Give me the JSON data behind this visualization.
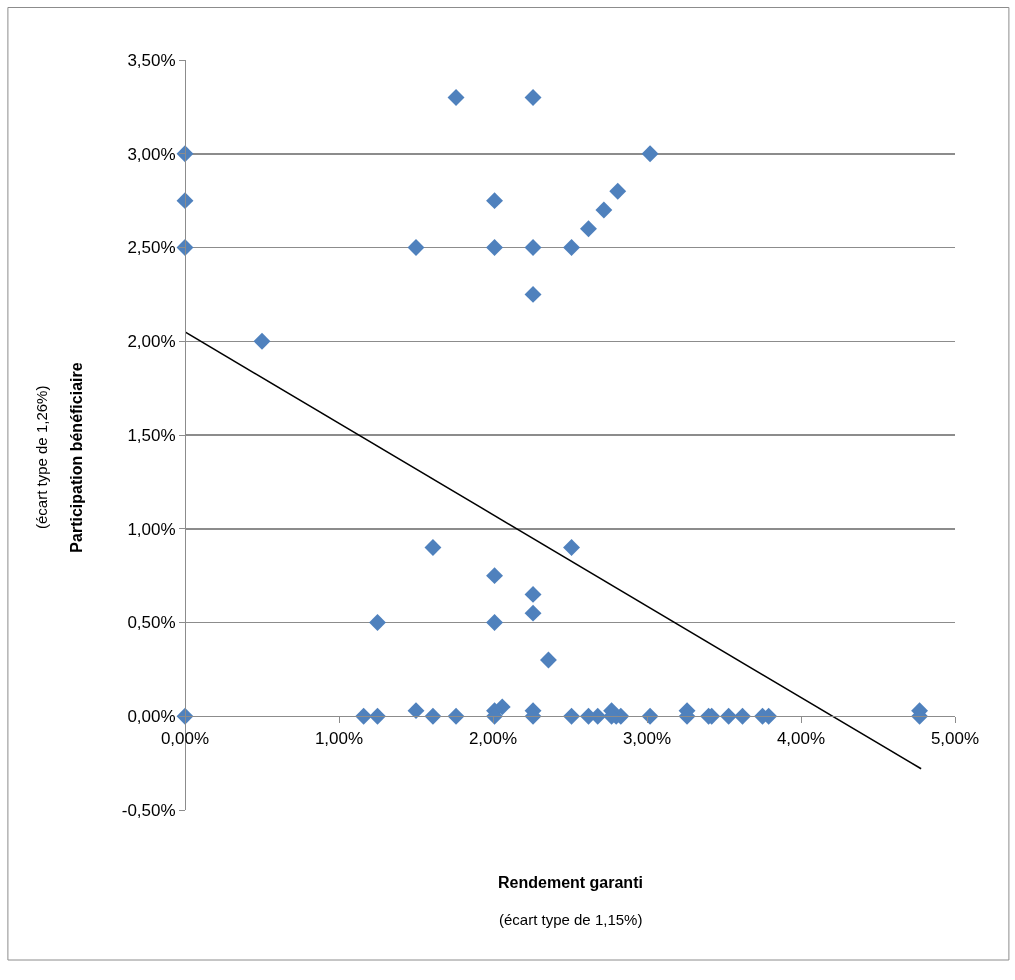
{
  "chart_data": {
    "type": "scatter",
    "xlabel": "Rendement garanti",
    "ylabel": "Participation bénéficiaire",
    "annotations": [
      "(écart type de 1,15%)",
      "(écart type de 1,26%)"
    ],
    "marker": "diamond",
    "grid": "y",
    "xlim": [
      0,
      5
    ],
    "xticks": [
      {
        "value": 0,
        "label": "0,00%"
      },
      {
        "value": 1,
        "label": "1,00%"
      },
      {
        "value": 2,
        "label": "2,00%"
      },
      {
        "value": 3,
        "label": "3,00%"
      },
      {
        "value": 4,
        "label": "4,00%"
      },
      {
        "value": 5,
        "label": "5,00%"
      }
    ],
    "ylim": [
      -0.5,
      3.5
    ],
    "yticks": [
      {
        "value": -0.5,
        "label": "-0,50%"
      },
      {
        "value": 0,
        "label": "0,00%"
      },
      {
        "value": 0.5,
        "label": "0,50%"
      },
      {
        "value": 1,
        "label": "1,00%"
      },
      {
        "value": 1.5,
        "label": "1,50%"
      },
      {
        "value": 2,
        "label": "2,00%"
      },
      {
        "value": 2.5,
        "label": "2,50%"
      },
      {
        "value": 3,
        "label": "3,00%"
      },
      {
        "value": 3.5,
        "label": "3,50%"
      }
    ],
    "x": [
      4.77,
      4.77,
      3.79,
      3.75,
      3.62,
      3.53,
      3.42,
      3.4,
      3.26,
      3.26,
      3.02,
      3.02,
      2.83,
      2.8,
      2.77,
      2.77,
      2.68,
      2.62,
      2.81,
      2.72,
      2.62,
      2.51,
      2.51,
      2.51,
      2.36,
      2.26,
      2.26,
      2.26,
      2.26,
      2.26,
      2.26,
      2.26,
      2.06,
      2.01,
      2.01,
      2.01,
      2.01,
      2.01,
      2.01,
      1.76,
      1.76,
      1.61,
      1.61,
      1.5,
      1.5,
      1.25,
      1.25,
      1.16,
      0.5,
      0,
      0,
      0,
      0
    ],
    "series": [
      {
        "color": "#4f81bd",
        "values": [
          0.03,
          0,
          0,
          0,
          0,
          0,
          0,
          0,
          0.03,
          0,
          0,
          3.0,
          0,
          0,
          0.03,
          0,
          0,
          0,
          2.8,
          2.7,
          2.6,
          2.5,
          0.9,
          0,
          0.3,
          3.3,
          2.5,
          2.25,
          0.65,
          0.55,
          0.03,
          0,
          0.05,
          2.75,
          2.5,
          0.75,
          0.5,
          0.03,
          0,
          3.3,
          0,
          0.9,
          0,
          2.5,
          0.03,
          0.5,
          0,
          0,
          2.0,
          3.0,
          2.75,
          2.5,
          0
        ]
      },
      {
        "type": "line",
        "color": "#000000",
        "x": [
          0,
          4.78
        ],
        "values": [
          2.05,
          -0.28
        ],
        "marker": "none",
        "line_style": "solid"
      }
    ]
  }
}
